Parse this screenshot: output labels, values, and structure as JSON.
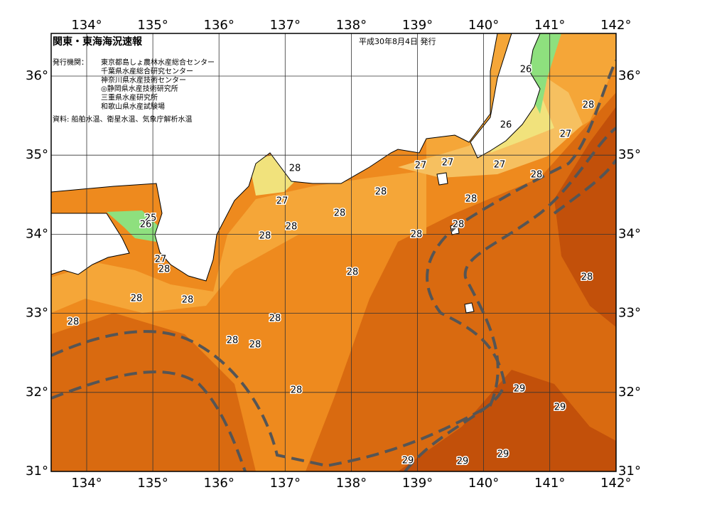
{
  "header": {
    "title": "関東・東海海況速報",
    "date": "平成30年8月4日 発行"
  },
  "issuers": {
    "label": "発行機関：",
    "list": [
      "東京都島しょ農林水産総合センター",
      "千葉県水産総合研究センター",
      "神奈川県水産技術センター",
      "◎静岡県水産技術研究所",
      "三重県水産研究所",
      "和歌山県水産試験場"
    ]
  },
  "source": "資料: 船舶水温、衛星水温、気象庁解析水温",
  "map": {
    "lon_labels": [
      "134°",
      "135°",
      "136°",
      "137°",
      "138°",
      "139°",
      "140°",
      "141°",
      "142°"
    ],
    "lat_labels": [
      "36°",
      "35°",
      "34°",
      "33°",
      "32°",
      "31°"
    ],
    "contour_labels": [
      26,
      28,
      26,
      27,
      27,
      27,
      27,
      28,
      28,
      28,
      28,
      27,
      28,
      28,
      28,
      28,
      28,
      25,
      26,
      27,
      28,
      28,
      28,
      28,
      28,
      28,
      28,
      28,
      28,
      28,
      29,
      29,
      29,
      29,
      29
    ]
  }
}
